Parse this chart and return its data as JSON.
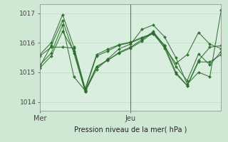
{
  "title": "",
  "xlabel": "Pression niveau de la mer( hPa )",
  "ylabel": "",
  "bg_color": "#cfe8d4",
  "plot_bg_color": "#daeee0",
  "line_color": "#2d6e2d",
  "marker_color": "#2d6e2d",
  "grid_color": "#b8d4bc",
  "ylim": [
    1013.7,
    1017.3
  ],
  "xlim": [
    0,
    48
  ],
  "xtick_positions": [
    0,
    24
  ],
  "xtick_labels": [
    "Mer",
    "Jeu"
  ],
  "ytick_positions": [
    1014,
    1015,
    1016,
    1017
  ],
  "ytick_labels": [
    "1014",
    "1015",
    "1016",
    "1017"
  ],
  "vline_x": 24,
  "series": [
    [
      0,
      3,
      6,
      9,
      12,
      15,
      18,
      21,
      24,
      27,
      30,
      33,
      36,
      39,
      42,
      45,
      48
    ],
    [
      [
        1015.2,
        1015.9,
        1016.75,
        1015.65,
        1014.35,
        1015.1,
        1015.45,
        1015.8,
        1015.95,
        1016.45,
        1016.6,
        1016.2,
        1015.5,
        1014.6,
        1015.0,
        1014.85,
        1017.1
      ],
      [
        1015.55,
        1015.85,
        1015.85,
        1015.82,
        1014.4,
        1015.55,
        1015.72,
        1015.92,
        1016.0,
        1016.15,
        1016.3,
        1015.85,
        1015.3,
        1015.6,
        1016.35,
        1015.95,
        1015.8
      ],
      [
        1015.25,
        1015.65,
        1016.6,
        1014.85,
        1014.38,
        1015.2,
        1015.4,
        1015.68,
        1015.85,
        1016.1,
        1016.38,
        1015.9,
        1015.0,
        1014.55,
        1015.4,
        1015.85,
        1015.9
      ],
      [
        1015.6,
        1016.0,
        1016.95,
        1015.85,
        1014.45,
        1015.6,
        1015.78,
        1015.94,
        1016.02,
        1016.18,
        1016.32,
        1015.92,
        1015.2,
        1014.72,
        1015.62,
        1015.25,
        1015.7
      ],
      [
        1015.15,
        1015.55,
        1016.38,
        1015.72,
        1014.36,
        1015.18,
        1015.42,
        1015.65,
        1015.82,
        1016.05,
        1016.35,
        1015.82,
        1014.95,
        1014.55,
        1015.35,
        1015.35,
        1015.6
      ]
    ]
  ]
}
